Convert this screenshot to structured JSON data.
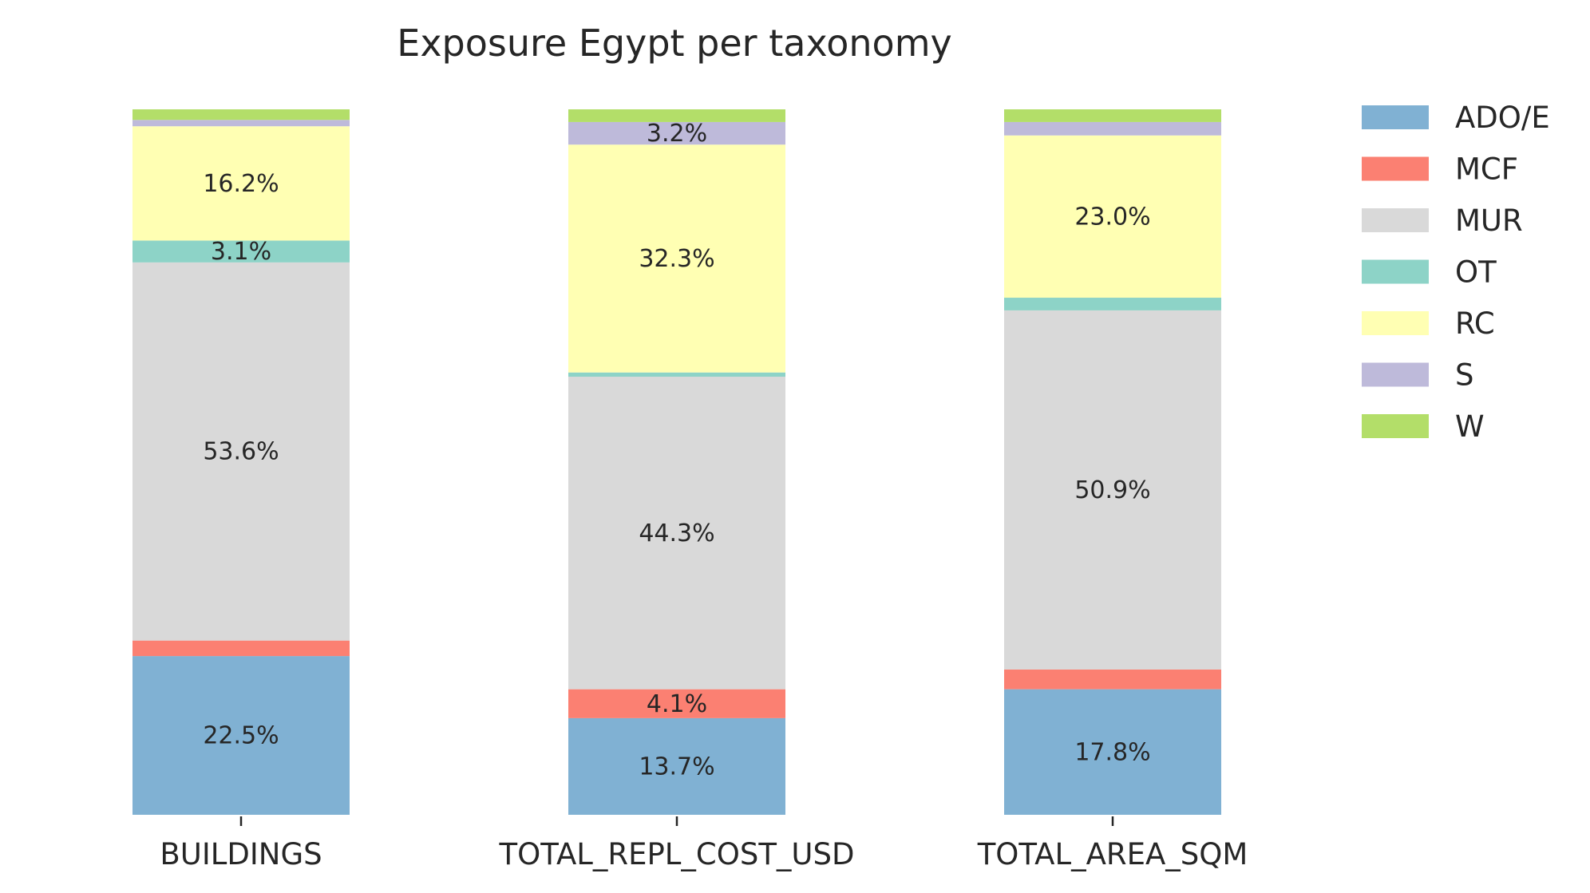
{
  "chart_data": {
    "type": "bar",
    "stacked": true,
    "normalized": true,
    "title": "Exposure Egypt per taxonomy",
    "xlabel": "",
    "ylabel": "",
    "ylim": [
      0,
      100
    ],
    "grid": false,
    "legend_position": "right",
    "categories": [
      "BUILDINGS",
      "TOTAL_REPL_COST_USD",
      "TOTAL_AREA_SQM"
    ],
    "series": [
      {
        "name": "ADO/E",
        "color": "#80b1d3",
        "values": [
          22.5,
          13.7,
          17.8
        ]
      },
      {
        "name": "MCF",
        "color": "#fb8072",
        "values": [
          2.2,
          4.1,
          2.8
        ]
      },
      {
        "name": "MUR",
        "color": "#d9d9d9",
        "values": [
          53.6,
          44.3,
          50.9
        ]
      },
      {
        "name": "OT",
        "color": "#8dd3c7",
        "values": [
          3.1,
          0.6,
          1.8
        ]
      },
      {
        "name": "RC",
        "color": "#ffffb3",
        "values": [
          16.2,
          32.3,
          23.0
        ]
      },
      {
        "name": "S",
        "color": "#bebada",
        "values": [
          0.9,
          3.2,
          1.9
        ]
      },
      {
        "name": "W",
        "color": "#b3de69",
        "values": [
          1.5,
          1.8,
          1.8
        ]
      }
    ],
    "data_labels": [
      [
        "22.5%",
        "",
        "53.6%",
        "3.1%",
        "16.2%",
        "",
        ""
      ],
      [
        "13.7%",
        "4.1%",
        "44.3%",
        "",
        "32.3%",
        "3.2%",
        ""
      ],
      [
        "17.8%",
        "",
        "50.9%",
        "",
        "23.0%",
        "",
        ""
      ]
    ]
  }
}
